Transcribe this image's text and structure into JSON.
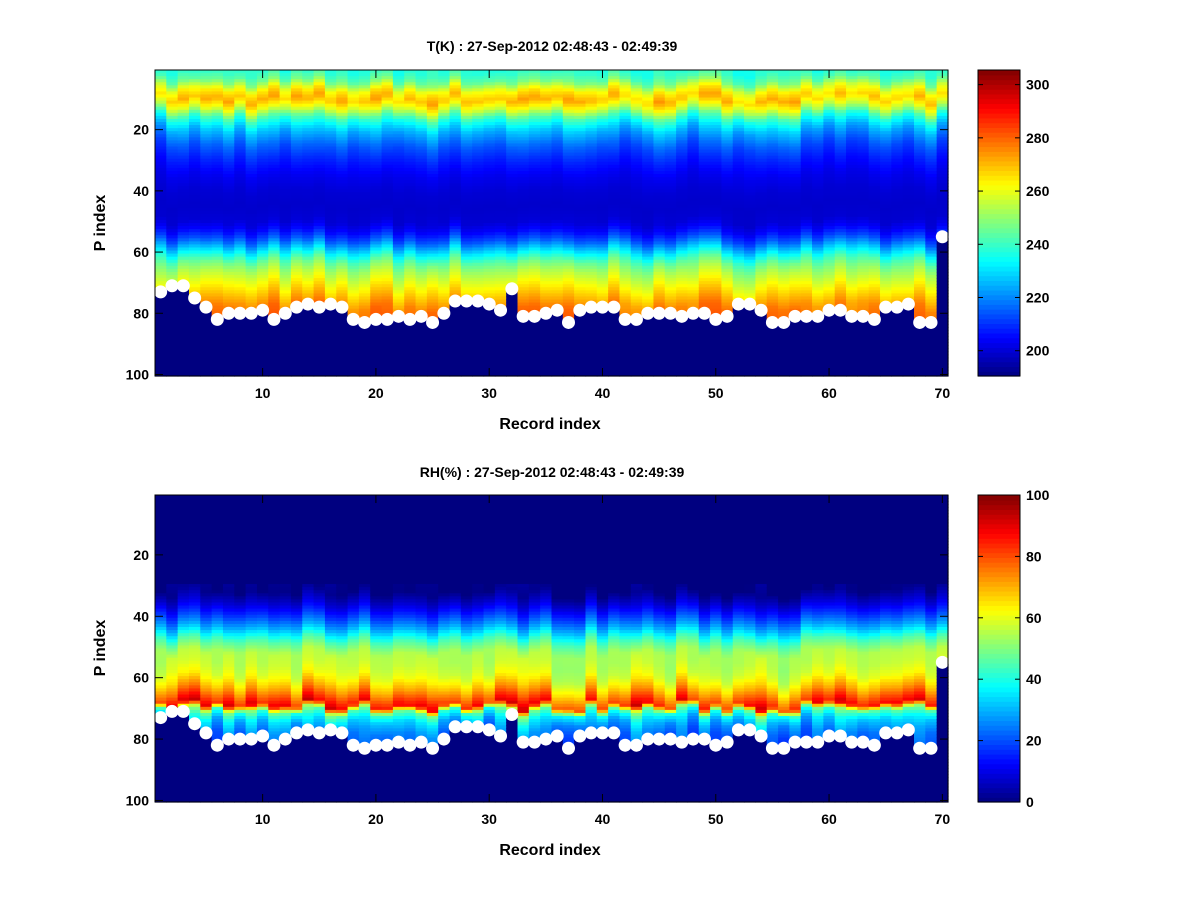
{
  "chart_data": [
    {
      "type": "heatmap",
      "title": "T(K) : 27-Sep-2012 02:48:43 - 02:49:39",
      "xlabel": "Record index",
      "ylabel": "P index",
      "xlim": [
        0.5,
        70.5
      ],
      "ylim": [
        0.5,
        100.5
      ],
      "y_reversed": true,
      "xticks": [
        10,
        20,
        30,
        40,
        50,
        60,
        70
      ],
      "yticks": [
        20,
        40,
        60,
        80,
        100
      ],
      "colorbar": {
        "clim": [
          190.5,
          305.5
        ],
        "ticks": [
          200,
          220,
          240,
          260,
          280,
          300
        ],
        "colormap": "jet"
      },
      "profile_knots": {
        "level": [
          1,
          4,
          7,
          10,
          13,
          16,
          20,
          25,
          30,
          35,
          40,
          45,
          50,
          53,
          56,
          60,
          63,
          66,
          70,
          74,
          78,
          84,
          100
        ],
        "value": [
          238,
          245,
          262,
          270,
          258,
          240,
          226,
          215,
          208,
          203,
          200,
          199,
          200,
          205,
          214,
          232,
          244,
          252,
          260,
          268,
          276,
          280,
          282
        ]
      },
      "column_variability": 5,
      "below_surface_value": 190.5
    },
    {
      "type": "heatmap",
      "title": "RH(%) : 27-Sep-2012 02:48:43 - 02:49:39",
      "xlabel": "Record index",
      "ylabel": "P index",
      "xlim": [
        0.5,
        70.5
      ],
      "ylim": [
        0.5,
        100.5
      ],
      "y_reversed": true,
      "xticks": [
        10,
        20,
        30,
        40,
        50,
        60,
        70
      ],
      "yticks": [
        20,
        40,
        60,
        80,
        100
      ],
      "colorbar": {
        "clim": [
          0,
          100
        ],
        "ticks": [
          0,
          20,
          40,
          60,
          80,
          100
        ],
        "colormap": "jet"
      },
      "profile_knots": {
        "level": [
          1,
          32,
          36,
          40,
          44,
          48,
          52,
          56,
          60,
          64,
          67,
          69,
          71,
          74,
          78,
          84,
          100
        ],
        "value": [
          0,
          0,
          8,
          18,
          30,
          45,
          55,
          56,
          60,
          70,
          80,
          86,
          45,
          32,
          24,
          20,
          18
        ]
      },
      "column_variability": 8,
      "below_surface_value": 0
    }
  ],
  "surface_index": {
    "records": [
      1,
      2,
      3,
      4,
      5,
      6,
      7,
      8,
      9,
      10,
      11,
      12,
      13,
      14,
      15,
      16,
      17,
      18,
      19,
      20,
      21,
      22,
      23,
      24,
      25,
      26,
      27,
      28,
      29,
      30,
      31,
      32,
      33,
      34,
      35,
      36,
      37,
      38,
      39,
      40,
      41,
      42,
      43,
      44,
      45,
      46,
      47,
      48,
      49,
      50,
      51,
      52,
      53,
      54,
      55,
      56,
      57,
      58,
      59,
      60,
      61,
      62,
      63,
      64,
      65,
      66,
      67,
      68,
      69,
      70
    ],
    "p_index": [
      73,
      71,
      71,
      75,
      78,
      82,
      80,
      80,
      80,
      79,
      82,
      80,
      78,
      77,
      78,
      77,
      78,
      82,
      83,
      82,
      82,
      81,
      82,
      81,
      83,
      80,
      76,
      76,
      76,
      77,
      79,
      72,
      81,
      81,
      80,
      79,
      83,
      79,
      78,
      78,
      78,
      82,
      82,
      80,
      80,
      80,
      81,
      80,
      80,
      82,
      81,
      77,
      77,
      79,
      83,
      83,
      81,
      81,
      81,
      79,
      79,
      81,
      81,
      82,
      78,
      78,
      77,
      83,
      83,
      55
    ],
    "marker_color": "#ffffff"
  }
}
